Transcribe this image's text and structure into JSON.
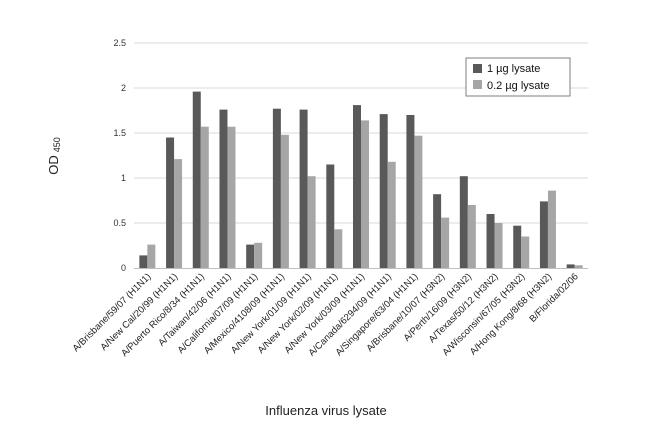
{
  "chart_data": {
    "type": "bar",
    "title": "",
    "xlabel": "Influenza virus lysate",
    "ylabel": "OD",
    "ylabel_sub": "450",
    "ylim": [
      0,
      2.5
    ],
    "yticks": [
      "0",
      "0.5",
      "1",
      "1.5",
      "2",
      "2.5"
    ],
    "grid": true,
    "legend_position": "top-right",
    "categories": [
      "A/Brisbane/59/07 (H1N1)",
      "A/New Cal/20/99 (H1N1)",
      "A/Puerto Rico/8/34 (H1N1)",
      "A/Taiwan/42/06 (H1N1)",
      "A/California/07/09 (H1N1)",
      "A/Mexico/4108/09 (H1N1)",
      "A/New York/01/09 (H1N1)",
      "A/New York/02/09 (H1N1)",
      "A/New York/03/09 (H1N1)",
      "A/Canada/6294/09 (H1N1)",
      "A/Singapore/63/04 (H1N1)",
      "A/Brisbane/10/07 (H3N2)",
      "A/Perth/16/09 (H3N2)",
      "A/Texas/50/12 (H3N2)",
      "A/Wisconsin/67/05 (H3N2)",
      "A/Hong Kong/8/68 (H3N2)",
      "B/Florida/02/06"
    ],
    "series": [
      {
        "name": "1 µg lysate",
        "color": "#595959",
        "values": [
          0.14,
          1.45,
          1.96,
          1.76,
          0.26,
          1.77,
          1.76,
          1.15,
          1.81,
          1.71,
          1.7,
          0.82,
          1.02,
          0.6,
          0.47,
          0.74,
          0.04
        ]
      },
      {
        "name": "0.2 µg lysate",
        "color": "#a6a6a6",
        "values": [
          0.26,
          1.21,
          1.57,
          1.57,
          0.28,
          1.48,
          1.02,
          0.43,
          1.64,
          1.18,
          1.47,
          0.56,
          0.7,
          0.5,
          0.35,
          0.86,
          0.03
        ]
      }
    ]
  }
}
